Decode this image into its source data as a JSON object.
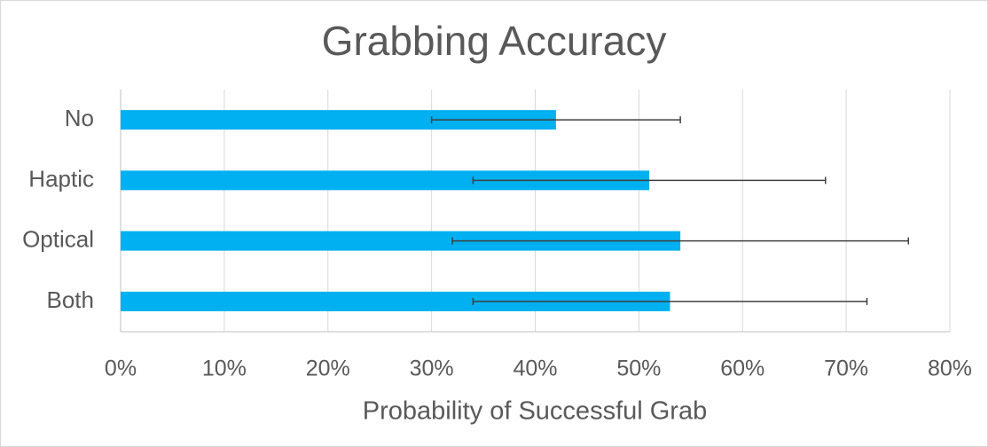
{
  "chart_data": {
    "type": "bar",
    "orientation": "horizontal",
    "title": "Grabbing Accuracy",
    "x_label": "Probability of Successful Grab",
    "categories": [
      "No",
      "Haptic",
      "Optical",
      "Both"
    ],
    "values": [
      42,
      51,
      54,
      53
    ],
    "errors": [
      12,
      17,
      22,
      19
    ],
    "color": "#00b0f0",
    "error_color": "#404040",
    "xlim": [
      0,
      80
    ],
    "xticks": [
      {
        "value": 0,
        "label": "0%"
      },
      {
        "value": 10,
        "label": "10%"
      },
      {
        "value": 20,
        "label": "20%"
      },
      {
        "value": 30,
        "label": "30%"
      },
      {
        "value": 40,
        "label": "40%"
      },
      {
        "value": 50,
        "label": "50%"
      },
      {
        "value": 60,
        "label": "60%"
      },
      {
        "value": 70,
        "label": "70%"
      },
      {
        "value": 80,
        "label": "80%"
      }
    ],
    "grid": true
  }
}
